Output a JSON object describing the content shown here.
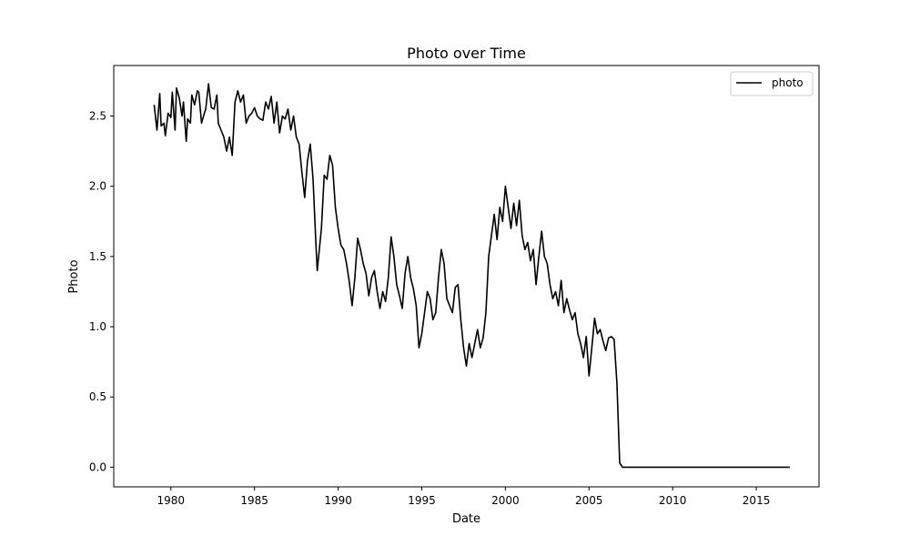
{
  "chart_data": {
    "type": "line",
    "title": "Photo over Time",
    "xlabel": "Date",
    "ylabel": "Photo",
    "x_ticks": [
      "1980",
      "1985",
      "1990",
      "1995",
      "2000",
      "2005",
      "2010",
      "2015"
    ],
    "y_ticks": [
      "0.0",
      "0.5",
      "1.0",
      "1.5",
      "2.0",
      "2.5"
    ],
    "xlim": [
      "1976-08",
      "2018-10"
    ],
    "ylim": [
      -0.14,
      2.86
    ],
    "grid": false,
    "legend": "top-right",
    "series": [
      {
        "name": "photo",
        "color": "#000000",
        "points": [
          [
            "1979-01",
            2.58
          ],
          [
            "1979-03",
            2.4
          ],
          [
            "1979-05",
            2.66
          ],
          [
            "1979-06",
            2.43
          ],
          [
            "1979-08",
            2.45
          ],
          [
            "1979-09",
            2.36
          ],
          [
            "1979-11",
            2.52
          ],
          [
            "1980-01",
            2.49
          ],
          [
            "1980-02",
            2.67
          ],
          [
            "1980-04",
            2.4
          ],
          [
            "1980-05",
            2.7
          ],
          [
            "1980-07",
            2.63
          ],
          [
            "1980-09",
            2.5
          ],
          [
            "1980-10",
            2.6
          ],
          [
            "1980-12",
            2.32
          ],
          [
            "1981-01",
            2.48
          ],
          [
            "1981-03",
            2.45
          ],
          [
            "1981-04",
            2.65
          ],
          [
            "1981-06",
            2.58
          ],
          [
            "1981-08",
            2.68
          ],
          [
            "1981-09",
            2.67
          ],
          [
            "1981-11",
            2.45
          ],
          [
            "1982-01",
            2.52
          ],
          [
            "1982-02",
            2.55
          ],
          [
            "1982-04",
            2.73
          ],
          [
            "1982-06",
            2.56
          ],
          [
            "1982-08",
            2.55
          ],
          [
            "1982-10",
            2.65
          ],
          [
            "1982-11",
            2.45
          ],
          [
            "1983-01",
            2.4
          ],
          [
            "1983-03",
            2.35
          ],
          [
            "1983-05",
            2.25
          ],
          [
            "1983-07",
            2.35
          ],
          [
            "1983-09",
            2.22
          ],
          [
            "1983-11",
            2.6
          ],
          [
            "1984-01",
            2.68
          ],
          [
            "1984-03",
            2.6
          ],
          [
            "1984-05",
            2.65
          ],
          [
            "1984-07",
            2.45
          ],
          [
            "1984-09",
            2.5
          ],
          [
            "1984-11",
            2.52
          ],
          [
            "1985-01",
            2.56
          ],
          [
            "1985-03",
            2.5
          ],
          [
            "1985-05",
            2.48
          ],
          [
            "1985-07",
            2.47
          ],
          [
            "1985-09",
            2.6
          ],
          [
            "1985-11",
            2.55
          ],
          [
            "1986-01",
            2.64
          ],
          [
            "1986-03",
            2.45
          ],
          [
            "1986-05",
            2.6
          ],
          [
            "1986-07",
            2.38
          ],
          [
            "1986-09",
            2.5
          ],
          [
            "1986-11",
            2.48
          ],
          [
            "1987-01",
            2.55
          ],
          [
            "1987-03",
            2.4
          ],
          [
            "1987-05",
            2.5
          ],
          [
            "1987-07",
            2.35
          ],
          [
            "1987-09",
            2.3
          ],
          [
            "1987-11",
            2.1
          ],
          [
            "1988-01",
            1.92
          ],
          [
            "1988-03",
            2.18
          ],
          [
            "1988-05",
            2.3
          ],
          [
            "1988-07",
            2.05
          ],
          [
            "1988-09",
            1.6
          ],
          [
            "1988-10",
            1.4
          ],
          [
            "1989-01",
            1.7
          ],
          [
            "1989-03",
            2.08
          ],
          [
            "1989-05",
            2.05
          ],
          [
            "1989-07",
            2.22
          ],
          [
            "1989-09",
            2.15
          ],
          [
            "1989-11",
            1.85
          ],
          [
            "1990-01",
            1.7
          ],
          [
            "1990-03",
            1.58
          ],
          [
            "1990-05",
            1.55
          ],
          [
            "1990-07",
            1.45
          ],
          [
            "1990-09",
            1.32
          ],
          [
            "1990-11",
            1.15
          ],
          [
            "1991-01",
            1.35
          ],
          [
            "1991-03",
            1.63
          ],
          [
            "1991-05",
            1.55
          ],
          [
            "1991-07",
            1.45
          ],
          [
            "1991-09",
            1.38
          ],
          [
            "1991-11",
            1.22
          ],
          [
            "1992-01",
            1.35
          ],
          [
            "1992-03",
            1.4
          ],
          [
            "1992-05",
            1.25
          ],
          [
            "1992-07",
            1.13
          ],
          [
            "1992-09",
            1.25
          ],
          [
            "1992-11",
            1.18
          ],
          [
            "1993-01",
            1.35
          ],
          [
            "1993-03",
            1.64
          ],
          [
            "1993-05",
            1.5
          ],
          [
            "1993-07",
            1.3
          ],
          [
            "1993-09",
            1.22
          ],
          [
            "1993-11",
            1.13
          ],
          [
            "1994-01",
            1.38
          ],
          [
            "1994-03",
            1.5
          ],
          [
            "1994-05",
            1.35
          ],
          [
            "1994-07",
            1.27
          ],
          [
            "1994-09",
            1.15
          ],
          [
            "1994-11",
            0.85
          ],
          [
            "1995-01",
            0.95
          ],
          [
            "1995-03",
            1.1
          ],
          [
            "1995-05",
            1.25
          ],
          [
            "1995-07",
            1.2
          ],
          [
            "1995-09",
            1.05
          ],
          [
            "1995-11",
            1.1
          ],
          [
            "1996-01",
            1.35
          ],
          [
            "1996-03",
            1.55
          ],
          [
            "1996-05",
            1.45
          ],
          [
            "1996-07",
            1.2
          ],
          [
            "1996-09",
            1.15
          ],
          [
            "1996-11",
            1.1
          ],
          [
            "1997-01",
            1.28
          ],
          [
            "1997-03",
            1.3
          ],
          [
            "1997-05",
            1.05
          ],
          [
            "1997-07",
            0.85
          ],
          [
            "1997-09",
            0.72
          ],
          [
            "1997-11",
            0.88
          ],
          [
            "1998-01",
            0.78
          ],
          [
            "1998-03",
            0.88
          ],
          [
            "1998-05",
            0.98
          ],
          [
            "1998-07",
            0.85
          ],
          [
            "1998-09",
            0.92
          ],
          [
            "1998-11",
            1.1
          ],
          [
            "1999-01",
            1.5
          ],
          [
            "1999-03",
            1.65
          ],
          [
            "1999-05",
            1.8
          ],
          [
            "1999-07",
            1.62
          ],
          [
            "1999-09",
            1.85
          ],
          [
            "1999-11",
            1.75
          ],
          [
            "2000-01",
            2.0
          ],
          [
            "2000-03",
            1.85
          ],
          [
            "2000-05",
            1.7
          ],
          [
            "2000-07",
            1.88
          ],
          [
            "2000-09",
            1.72
          ],
          [
            "2000-11",
            1.9
          ],
          [
            "2001-01",
            1.65
          ],
          [
            "2001-03",
            1.55
          ],
          [
            "2001-05",
            1.6
          ],
          [
            "2001-07",
            1.47
          ],
          [
            "2001-09",
            1.55
          ],
          [
            "2001-11",
            1.3
          ],
          [
            "2002-01",
            1.5
          ],
          [
            "2002-03",
            1.68
          ],
          [
            "2002-05",
            1.5
          ],
          [
            "2002-07",
            1.45
          ],
          [
            "2002-09",
            1.3
          ],
          [
            "2002-11",
            1.2
          ],
          [
            "2003-01",
            1.25
          ],
          [
            "2003-03",
            1.15
          ],
          [
            "2003-05",
            1.33
          ],
          [
            "2003-07",
            1.1
          ],
          [
            "2003-09",
            1.2
          ],
          [
            "2003-11",
            1.12
          ],
          [
            "2004-01",
            1.05
          ],
          [
            "2004-03",
            1.1
          ],
          [
            "2004-05",
            0.95
          ],
          [
            "2004-07",
            0.88
          ],
          [
            "2004-09",
            0.78
          ],
          [
            "2004-11",
            0.93
          ],
          [
            "2005-01",
            0.65
          ],
          [
            "2005-03",
            0.85
          ],
          [
            "2005-05",
            1.06
          ],
          [
            "2005-07",
            0.95
          ],
          [
            "2005-09",
            0.98
          ],
          [
            "2005-11",
            0.9
          ],
          [
            "2006-01",
            0.83
          ],
          [
            "2006-03",
            0.92
          ],
          [
            "2006-05",
            0.93
          ],
          [
            "2006-07",
            0.91
          ],
          [
            "2006-09",
            0.6
          ],
          [
            "2006-11",
            0.03
          ],
          [
            "2007-01",
            0.0
          ],
          [
            "2017-01",
            0.0
          ]
        ]
      }
    ]
  }
}
